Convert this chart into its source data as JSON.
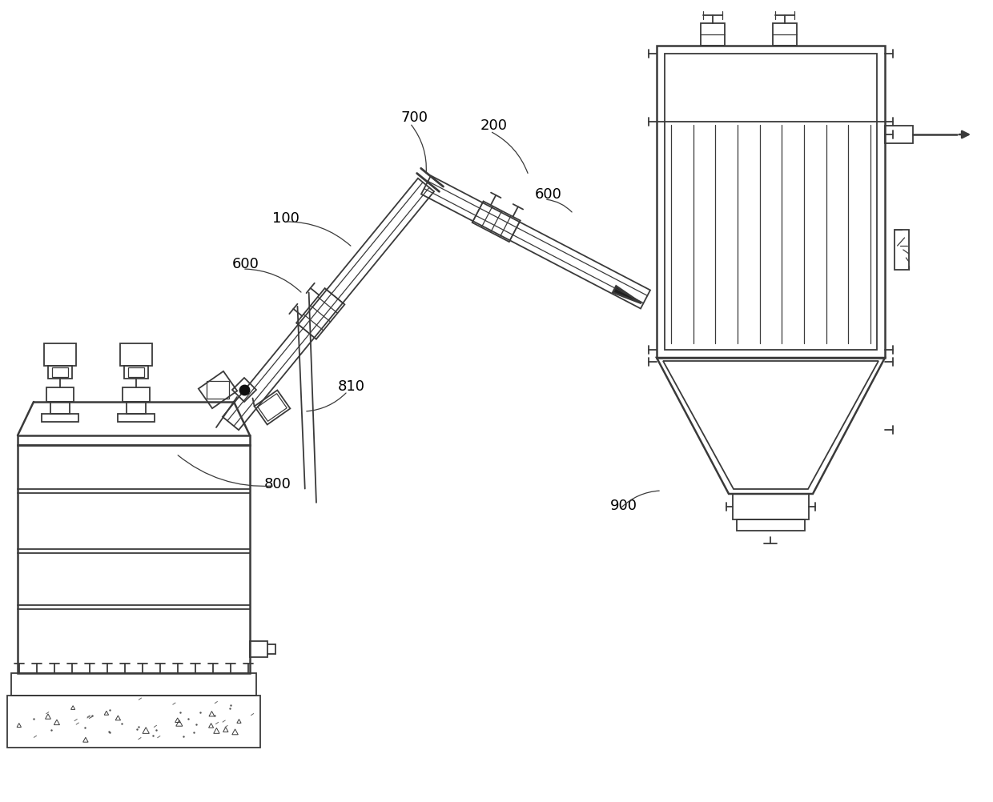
{
  "bg_color": "#ffffff",
  "lc": "#3a3a3a",
  "figsize": [
    12.4,
    10.03
  ],
  "dpi": 100,
  "labels": [
    [
      "100",
      340,
      278
    ],
    [
      "200",
      600,
      162
    ],
    [
      "600",
      290,
      335
    ],
    [
      "600",
      668,
      248
    ],
    [
      "700",
      500,
      152
    ],
    [
      "800",
      330,
      610
    ],
    [
      "810",
      422,
      488
    ],
    [
      "900",
      762,
      637
    ]
  ],
  "leader_lines": [
    [
      352,
      280,
      415,
      310
    ],
    [
      612,
      167,
      638,
      223
    ],
    [
      302,
      337,
      358,
      373
    ],
    [
      680,
      252,
      700,
      272
    ],
    [
      512,
      157,
      522,
      222
    ],
    [
      342,
      607,
      250,
      572
    ],
    [
      434,
      490,
      408,
      512
    ],
    [
      774,
      639,
      825,
      615
    ]
  ]
}
